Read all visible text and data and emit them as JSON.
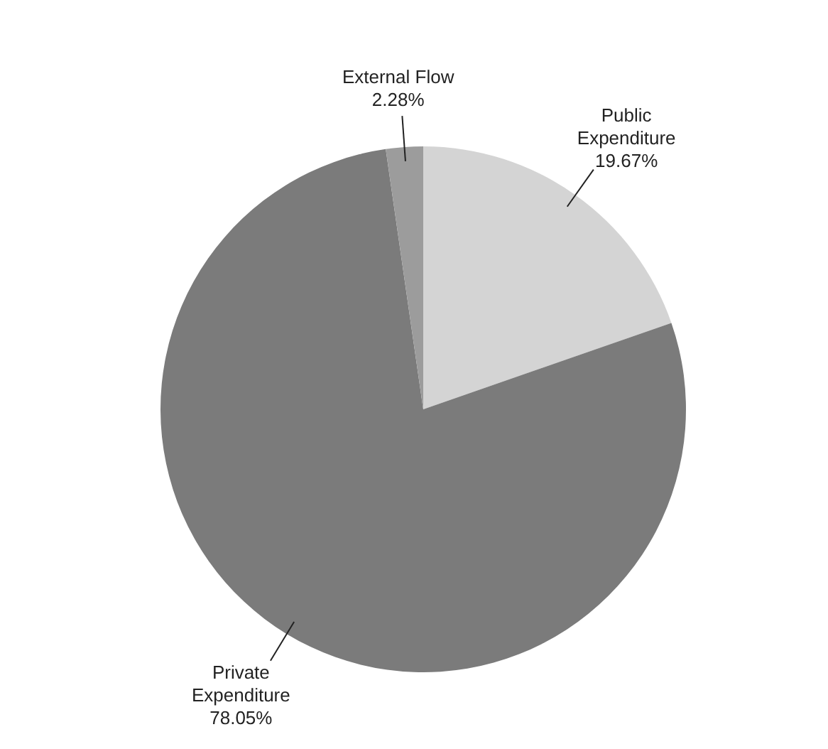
{
  "chart_data": {
    "type": "pie",
    "categories": [
      "Public Expenditure",
      "Private Expenditure",
      "External Flow"
    ],
    "values": [
      19.67,
      78.05,
      2.28
    ],
    "colors": [
      "#d4d4d4",
      "#7b7b7b",
      "#9c9c9c"
    ],
    "value_labels": [
      "19.67%",
      "78.05%",
      "2.28%"
    ]
  }
}
